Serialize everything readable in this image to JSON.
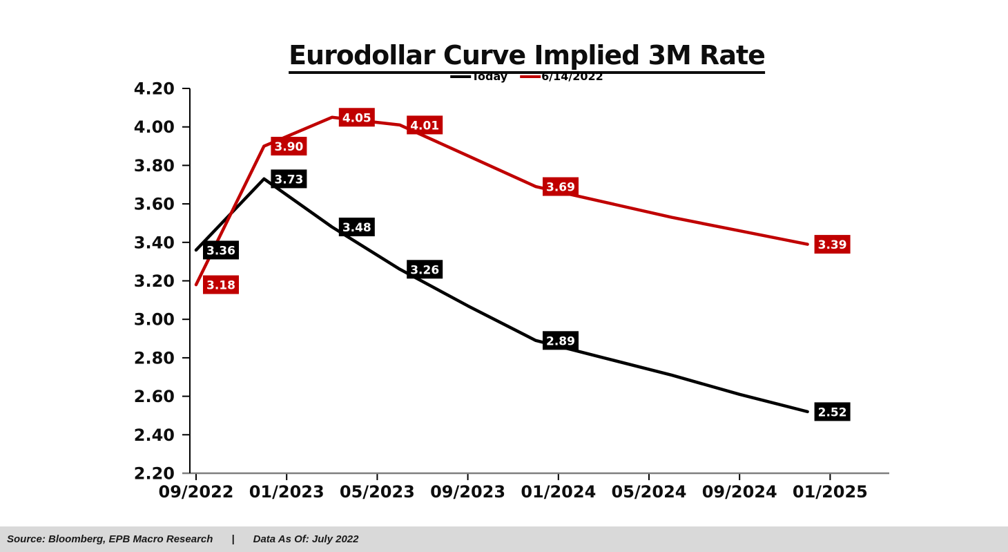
{
  "page": {
    "footer": {
      "source_label": "Source: Bloomberg, EPB Macro Research",
      "separator": "|",
      "data_as_of": "Data As Of: July 2022",
      "bar_color": "#d9d9d9"
    }
  },
  "chart_data": {
    "type": "line",
    "title": "Eurodollar Curve Implied 3M Rate",
    "legend_position": "top-center",
    "grid": false,
    "background": "#ffffff",
    "y_axis": {
      "min": 2.2,
      "max": 4.2,
      "step": 0.2,
      "tick_labels": [
        "4.20",
        "4.00",
        "3.80",
        "3.60",
        "3.40",
        "3.20",
        "3.00",
        "2.80",
        "2.60",
        "2.40",
        "2.20"
      ],
      "axis_color": "#000000"
    },
    "x_axis": {
      "tick_labels": [
        "09/2022",
        "01/2023",
        "05/2023",
        "09/2023",
        "01/2024",
        "05/2024",
        "09/2024",
        "01/2025"
      ],
      "tick_months": [
        0,
        4,
        8,
        12,
        16,
        20,
        24,
        28
      ],
      "axis_color": "#7f7f7f"
    },
    "series": [
      {
        "name": "Today",
        "color": "#000000",
        "points": [
          {
            "month": 0,
            "value": 3.36,
            "label": "3.36"
          },
          {
            "month": 3,
            "value": 3.73,
            "label": "3.73"
          },
          {
            "month": 6,
            "value": 3.48,
            "label": "3.48"
          },
          {
            "month": 9,
            "value": 3.26,
            "label": "3.26"
          },
          {
            "month": 12,
            "value": 3.07
          },
          {
            "month": 15,
            "value": 2.89,
            "label": "2.89"
          },
          {
            "month": 18,
            "value": 2.8
          },
          {
            "month": 21,
            "value": 2.71
          },
          {
            "month": 24,
            "value": 2.61
          },
          {
            "month": 27,
            "value": 2.52,
            "label": "2.52"
          }
        ]
      },
      {
        "name": "6/14/2022",
        "color": "#c00000",
        "points": [
          {
            "month": 0,
            "value": 3.18,
            "label": "3.18"
          },
          {
            "month": 3,
            "value": 3.9,
            "label": "3.90"
          },
          {
            "month": 6,
            "value": 4.05,
            "label": "4.05"
          },
          {
            "month": 9,
            "value": 4.01,
            "label": "4.01"
          },
          {
            "month": 12,
            "value": 3.85
          },
          {
            "month": 15,
            "value": 3.69,
            "label": "3.69"
          },
          {
            "month": 18,
            "value": 3.61
          },
          {
            "month": 21,
            "value": 3.53
          },
          {
            "month": 24,
            "value": 3.46
          },
          {
            "month": 27,
            "value": 3.39,
            "label": "3.39"
          }
        ]
      }
    ]
  }
}
